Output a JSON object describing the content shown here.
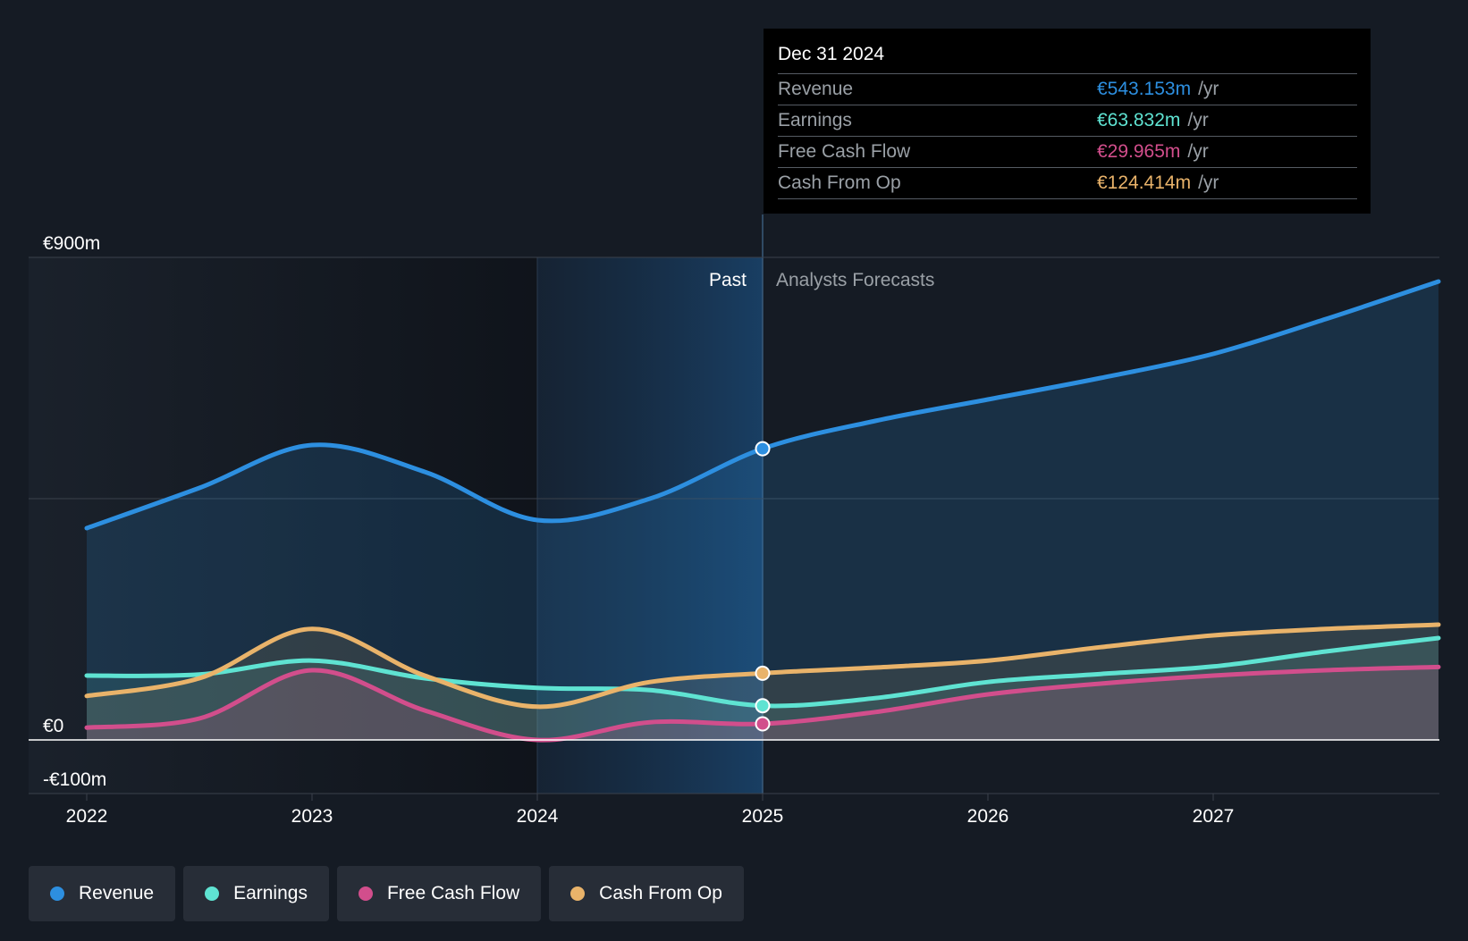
{
  "chart_data": {
    "type": "area",
    "title": "",
    "xlabel": "",
    "ylabel": "",
    "x_ticks": [
      "2022",
      "2023",
      "2024",
      "2025",
      "2026",
      "2027"
    ],
    "y_labels": [
      "€900m",
      "€0",
      "-€100m"
    ],
    "ylim": [
      -100,
      900
    ],
    "xlim": [
      2022,
      2028
    ],
    "past_label": "Past",
    "forecast_label": "Analysts Forecasts",
    "divider_x": 2025,
    "series": [
      {
        "name": "Revenue",
        "color": "#2d8fe0",
        "points": [
          [
            2022,
            395
          ],
          [
            2022.5,
            470
          ],
          [
            2023,
            550
          ],
          [
            2023.5,
            500
          ],
          [
            2024,
            410
          ],
          [
            2024.5,
            450
          ],
          [
            2025,
            543.153
          ],
          [
            2025.5,
            595
          ],
          [
            2026,
            635
          ],
          [
            2026.5,
            675
          ],
          [
            2027,
            720
          ],
          [
            2027.5,
            785
          ],
          [
            2028,
            855
          ]
        ]
      },
      {
        "name": "Earnings",
        "color": "#5fe3d2",
        "points": [
          [
            2022,
            120
          ],
          [
            2022.5,
            122
          ],
          [
            2023,
            148
          ],
          [
            2023.5,
            115
          ],
          [
            2024,
            97
          ],
          [
            2024.5,
            93
          ],
          [
            2025,
            63.832
          ],
          [
            2025.5,
            78
          ],
          [
            2026,
            108
          ],
          [
            2026.5,
            123
          ],
          [
            2027,
            137
          ],
          [
            2027.5,
            165
          ],
          [
            2028,
            190
          ]
        ]
      },
      {
        "name": "Free Cash Flow",
        "color": "#d24e8c",
        "points": [
          [
            2022,
            23
          ],
          [
            2022.5,
            40
          ],
          [
            2023,
            130
          ],
          [
            2023.5,
            55
          ],
          [
            2024,
            0
          ],
          [
            2024.5,
            33
          ],
          [
            2025,
            29.965
          ],
          [
            2025.5,
            52
          ],
          [
            2026,
            85
          ],
          [
            2026.5,
            105
          ],
          [
            2027,
            120
          ],
          [
            2027.5,
            130
          ],
          [
            2028,
            136
          ]
        ]
      },
      {
        "name": "Cash From Op",
        "color": "#e9b36a",
        "points": [
          [
            2022,
            82
          ],
          [
            2022.5,
            115
          ],
          [
            2023,
            207
          ],
          [
            2023.5,
            120
          ],
          [
            2024,
            62
          ],
          [
            2024.5,
            108
          ],
          [
            2025,
            124.414
          ],
          [
            2025.5,
            135
          ],
          [
            2026,
            148
          ],
          [
            2026.5,
            173
          ],
          [
            2027,
            195
          ],
          [
            2027.5,
            207
          ],
          [
            2028,
            215
          ]
        ]
      }
    ]
  },
  "tooltip": {
    "date": "Dec 31 2024",
    "rows": [
      {
        "label": "Revenue",
        "value": "€543.153m",
        "unit": "/yr",
        "color": "#2d8fe0"
      },
      {
        "label": "Earnings",
        "value": "€63.832m",
        "unit": "/yr",
        "color": "#5fe3d2"
      },
      {
        "label": "Free Cash Flow",
        "value": "€29.965m",
        "unit": "/yr",
        "color": "#d24e8c"
      },
      {
        "label": "Cash From Op",
        "value": "€124.414m",
        "unit": "/yr",
        "color": "#e9b36a"
      }
    ]
  },
  "legend": [
    {
      "label": "Revenue",
      "color": "#2d8fe0"
    },
    {
      "label": "Earnings",
      "color": "#5fe3d2"
    },
    {
      "label": "Free Cash Flow",
      "color": "#d24e8c"
    },
    {
      "label": "Cash From Op",
      "color": "#e9b36a"
    }
  ]
}
